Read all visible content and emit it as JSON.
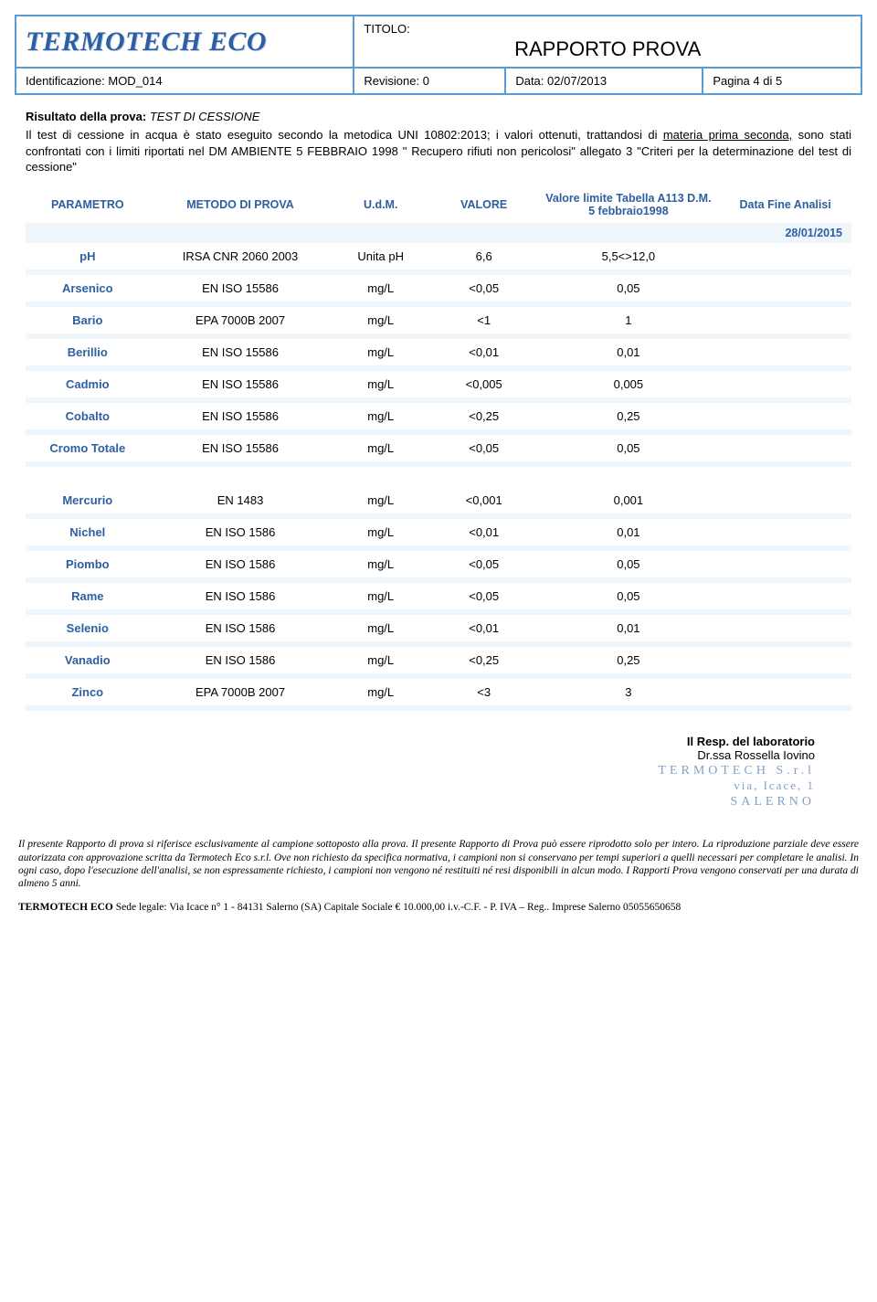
{
  "header": {
    "logo_text": "TERMOTECH ECO",
    "titolo_label": "TITOLO:",
    "titolo_value": "RAPPORTO PROVA",
    "identificazione_label": "Identificazione:",
    "identificazione_value": "MOD_014",
    "revisione_label": "Revisione:",
    "revisione_value": "0",
    "data_label": "Data:",
    "data_value": "02/07/2013",
    "pagina_label": "Pagina",
    "pagina_value": "4 di 5"
  },
  "result": {
    "label": "Risultato della prova:",
    "value": "TEST DI CESSIONE",
    "paragraph_prefix": "Il test di cessione in acqua è stato eseguito secondo la metodica UNI 10802:2013; i valori ottenuti, trattandosi di ",
    "paragraph_underlined": "materia prima seconda,",
    "paragraph_suffix": " sono stati confrontati con i limiti riportati nel DM AMBIENTE 5 FEBBRAIO 1998 \" Recupero rifiuti non pericolosi\" allegato 3 \"Criteri per la determinazione del test di cessione\""
  },
  "table": {
    "columns": {
      "parametro": "PARAMETRO",
      "metodo": "METODO DI PROVA",
      "udm": "U.d.M.",
      "valore": "VALORE",
      "limite": "Valore limite Tabella A113 D.M. 5 febbraio1998",
      "datafine": "Data Fine Analisi"
    },
    "date_fine": "28/01/2015",
    "rows": [
      {
        "p": "pH",
        "m": "IRSA CNR 2060 2003",
        "u": "Unita pH",
        "v": "6,6",
        "l": "5,5<>12,0"
      },
      {
        "p": "Arsenico",
        "m": "EN ISO 15586",
        "u": "mg/L",
        "v": "<0,05",
        "l": "0,05"
      },
      {
        "p": "Bario",
        "m": "EPA 7000B 2007",
        "u": "mg/L",
        "v": "<1",
        "l": "1"
      },
      {
        "p": "Berillio",
        "m": "EN ISO 15586",
        "u": "mg/L",
        "v": "<0,01",
        "l": "0,01"
      },
      {
        "p": "Cadmio",
        "m": "EN ISO 15586",
        "u": "mg/L",
        "v": "<0,005",
        "l": "0,005"
      },
      {
        "p": "Cobalto",
        "m": "EN ISO 15586",
        "u": "mg/L",
        "v": "<0,25",
        "l": "0,25"
      },
      {
        "p": "Cromo Totale",
        "m": "EN ISO 15586",
        "u": "mg/L",
        "v": "<0,05",
        "l": "0,05"
      },
      {
        "p": "Mercurio",
        "m": "EN 1483",
        "u": "mg/L",
        "v": "<0,001",
        "l": "0,001"
      },
      {
        "p": "Nichel",
        "m": "EN ISO 1586",
        "u": "mg/L",
        "v": "<0,01",
        "l": "0,01"
      },
      {
        "p": "Piombo",
        "m": "EN ISO 1586",
        "u": "mg/L",
        "v": "<0,05",
        "l": "0,05"
      },
      {
        "p": "Rame",
        "m": "EN ISO 1586",
        "u": "mg/L",
        "v": "<0,05",
        "l": "0,05"
      },
      {
        "p": "Selenio",
        "m": "EN ISO 1586",
        "u": "mg/L",
        "v": "<0,01",
        "l": "0,01"
      },
      {
        "p": "Vanadio",
        "m": "EN ISO 1586",
        "u": "mg/L",
        "v": "<0,25",
        "l": "0,25"
      },
      {
        "p": "Zinco",
        "m": "EPA 7000B 2007",
        "u": "mg/L",
        "v": "<3",
        "l": "3"
      }
    ],
    "big_gap_after_index": 6
  },
  "signature": {
    "title": "Il Resp. del laboratorio",
    "name": "Dr.ssa Rossella Iovino",
    "stamp_line1": "TERMOTECH S.r.l",
    "stamp_line2": "via, Icace, 1",
    "stamp_line3": "SALERNO"
  },
  "disclaimer": "Il presente Rapporto di prova si riferisce esclusivamente al campione sottoposto alla prova. Il presente Rapporto di Prova può essere riprodotto solo per intero. La riproduzione parziale deve essere autorizzata con approvazione scritta da Termotech Eco s.r.l. Ove non richiesto da specifica normativa, i campioni non si conservano per tempi superiori a quelli necessari per completare le analisi. In ogni caso, dopo l'esecuzione dell'analisi, se non espressamente richiesto, i campioni non vengono né restituiti né resi disponibili in alcun modo. I Rapporti Prova vengono conservati per una durata di almeno 5 anni.",
  "footer": {
    "prefix_bold": "TERMOTECH ECO",
    "rest": "  Sede legale: Via  Icace n° 1 - 84131 Salerno (SA) Capitale Sociale  € 10.000,00 i.v.-C.F.  -  P. IVA – Reg.. Imprese Salerno 05055650658"
  },
  "colors": {
    "border": "#5b9bd5",
    "brand": "#2e5fa1",
    "row_sep_bg": "#eef5fb"
  }
}
